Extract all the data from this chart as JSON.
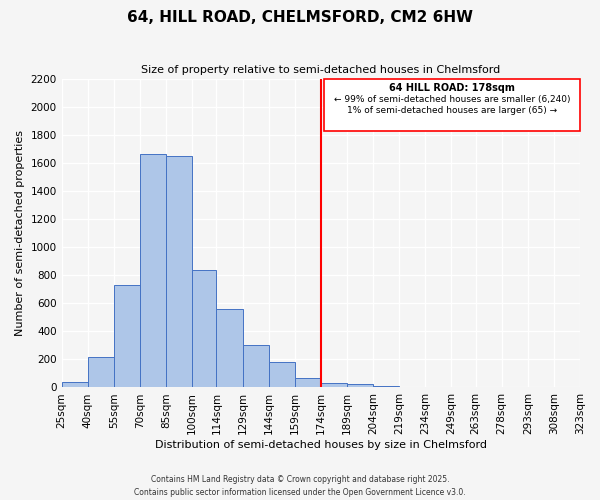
{
  "title": "64, HILL ROAD, CHELMSFORD, CM2 6HW",
  "subtitle": "Size of property relative to semi-detached houses in Chelmsford",
  "xlabel": "Distribution of semi-detached houses by size in Chelmsford",
  "ylabel": "Number of semi-detached properties",
  "bin_labels": [
    "25sqm",
    "40sqm",
    "55sqm",
    "70sqm",
    "85sqm",
    "100sqm",
    "114sqm",
    "129sqm",
    "144sqm",
    "159sqm",
    "174sqm",
    "189sqm",
    "204sqm",
    "219sqm",
    "234sqm",
    "249sqm",
    "263sqm",
    "278sqm",
    "293sqm",
    "308sqm",
    "323sqm"
  ],
  "bin_left_edges": [
    25,
    40,
    55,
    70,
    85,
    100,
    114,
    129,
    144,
    159,
    174,
    189,
    204,
    219,
    234,
    249,
    263,
    278,
    293,
    308
  ],
  "bin_all_edges": [
    25,
    40,
    55,
    70,
    85,
    100,
    114,
    129,
    144,
    159,
    174,
    189,
    204,
    219,
    234,
    249,
    263,
    278,
    293,
    308,
    323
  ],
  "bar_heights": [
    40,
    220,
    730,
    1660,
    1650,
    840,
    560,
    300,
    180,
    70,
    35,
    25,
    10,
    5,
    0,
    0,
    0,
    0,
    0,
    0
  ],
  "bar_color": "#aec6e8",
  "bar_edge_color": "#4472c4",
  "vline_x": 174,
  "vline_color": "#ff0000",
  "annotation_title": "64 HILL ROAD: 178sqm",
  "annotation_line1": "← 99% of semi-detached houses are smaller (6,240)",
  "annotation_line2": "1% of semi-detached houses are larger (65) →",
  "ylim": [
    0,
    2200
  ],
  "yticks": [
    0,
    200,
    400,
    600,
    800,
    1000,
    1200,
    1400,
    1600,
    1800,
    2000,
    2200
  ],
  "footer_line1": "Contains HM Land Registry data © Crown copyright and database right 2025.",
  "footer_line2": "Contains public sector information licensed under the Open Government Licence v3.0.",
  "bg_color": "#f5f5f5",
  "grid_color": "#ffffff"
}
